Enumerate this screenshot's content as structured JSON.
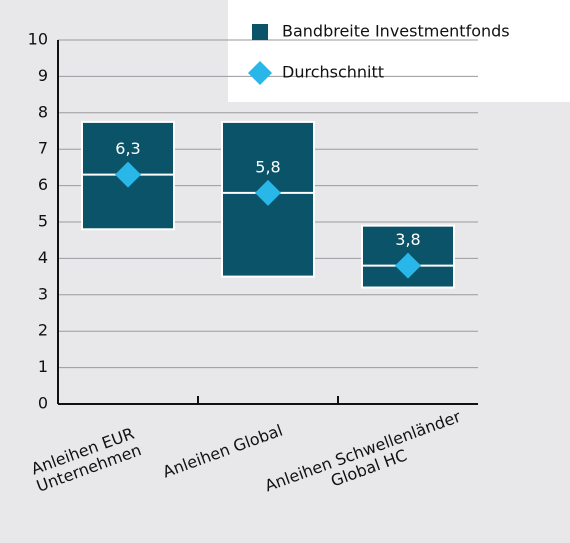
{
  "chart_data": {
    "type": "range_bar",
    "categories": [
      [
        "Anleihen EUR",
        "Unternehmen"
      ],
      [
        "Anleihen Global"
      ],
      [
        "Anleihen Schwellenländer",
        "Global HC"
      ]
    ],
    "series": [
      {
        "name": "Bandbreite Investmentfonds",
        "color": "#0b5368",
        "low": [
          4.8,
          3.5,
          3.2
        ],
        "high": [
          7.75,
          7.75,
          4.9
        ]
      },
      {
        "name": "Durchschnitt",
        "color": "#29b6e8",
        "values": [
          6.3,
          5.8,
          3.8
        ],
        "value_labels": [
          "6,3",
          "5,8",
          "3,8"
        ]
      }
    ],
    "ylim": [
      0,
      10
    ],
    "yticks": [
      0,
      1,
      2,
      3,
      4,
      5,
      6,
      7,
      8,
      9,
      10
    ],
    "grid": true
  }
}
